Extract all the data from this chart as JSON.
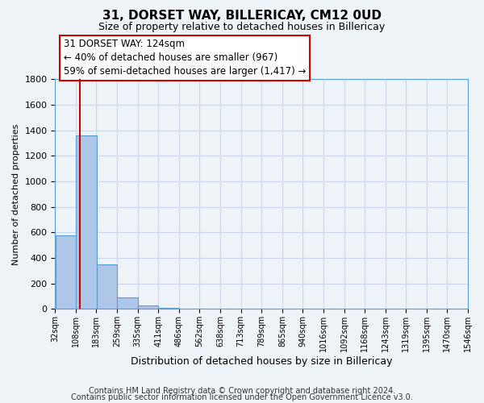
{
  "title": "31, DORSET WAY, BILLERICAY, CM12 0UD",
  "subtitle": "Size of property relative to detached houses in Billericay",
  "xlabel": "Distribution of detached houses by size in Billericay",
  "ylabel": "Number of detached properties",
  "bin_edges": [
    32,
    108,
    183,
    259,
    335,
    411,
    486,
    562,
    638,
    713,
    789,
    865,
    940,
    1016,
    1092,
    1168,
    1243,
    1319,
    1395,
    1470,
    1546
  ],
  "bin_labels": [
    "32sqm",
    "108sqm",
    "183sqm",
    "259sqm",
    "335sqm",
    "411sqm",
    "486sqm",
    "562sqm",
    "638sqm",
    "713sqm",
    "789sqm",
    "865sqm",
    "940sqm",
    "1016sqm",
    "1092sqm",
    "1168sqm",
    "1243sqm",
    "1319sqm",
    "1395sqm",
    "1470sqm",
    "1546sqm"
  ],
  "bar_heights": [
    580,
    1360,
    350,
    90,
    30,
    10,
    0,
    0,
    0,
    0,
    0,
    0,
    0,
    0,
    0,
    0,
    0,
    0,
    0,
    0
  ],
  "bar_color": "#aec6e8",
  "bar_edge_color": "#5a9fd4",
  "property_line_x": 124,
  "property_line_color": "#cc0000",
  "ylim": [
    0,
    1800
  ],
  "yticks": [
    0,
    200,
    400,
    600,
    800,
    1000,
    1200,
    1400,
    1600,
    1800
  ],
  "annotation_line1": "31 DORSET WAY: 124sqm",
  "annotation_line2": "← 40% of detached houses are smaller (967)",
  "annotation_line3": "59% of semi-detached houses are larger (1,417) →",
  "grid_color": "#c8d8e8",
  "background_color": "#eef3f8",
  "footer_line1": "Contains HM Land Registry data © Crown copyright and database right 2024.",
  "footer_line2": "Contains public sector information licensed under the Open Government Licence v3.0."
}
